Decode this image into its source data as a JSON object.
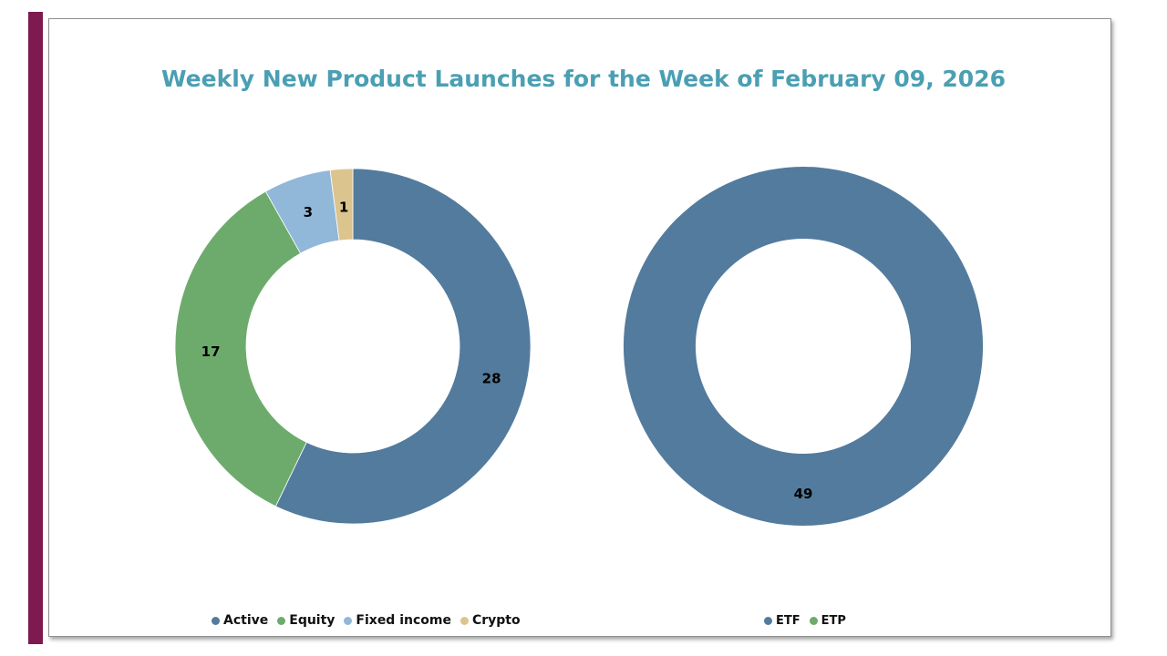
{
  "chart_data": [
    {
      "type": "pie",
      "subtype": "donut",
      "title": "Weekly New Product Launches for the Week of February 09, 2026",
      "categories": [
        "Active",
        "Equity",
        "Fixed income",
        "Crypto"
      ],
      "values": [
        28,
        17,
        3,
        1
      ],
      "colors": [
        "#537b9d",
        "#6dab6c",
        "#91b7d9",
        "#dcc48e"
      ],
      "legend_position": "bottom"
    },
    {
      "type": "pie",
      "subtype": "donut",
      "categories": [
        "ETF",
        "ETP"
      ],
      "values": [
        49,
        0
      ],
      "colors": [
        "#537b9d",
        "#6dab6c"
      ],
      "legend_position": "bottom"
    }
  ]
}
